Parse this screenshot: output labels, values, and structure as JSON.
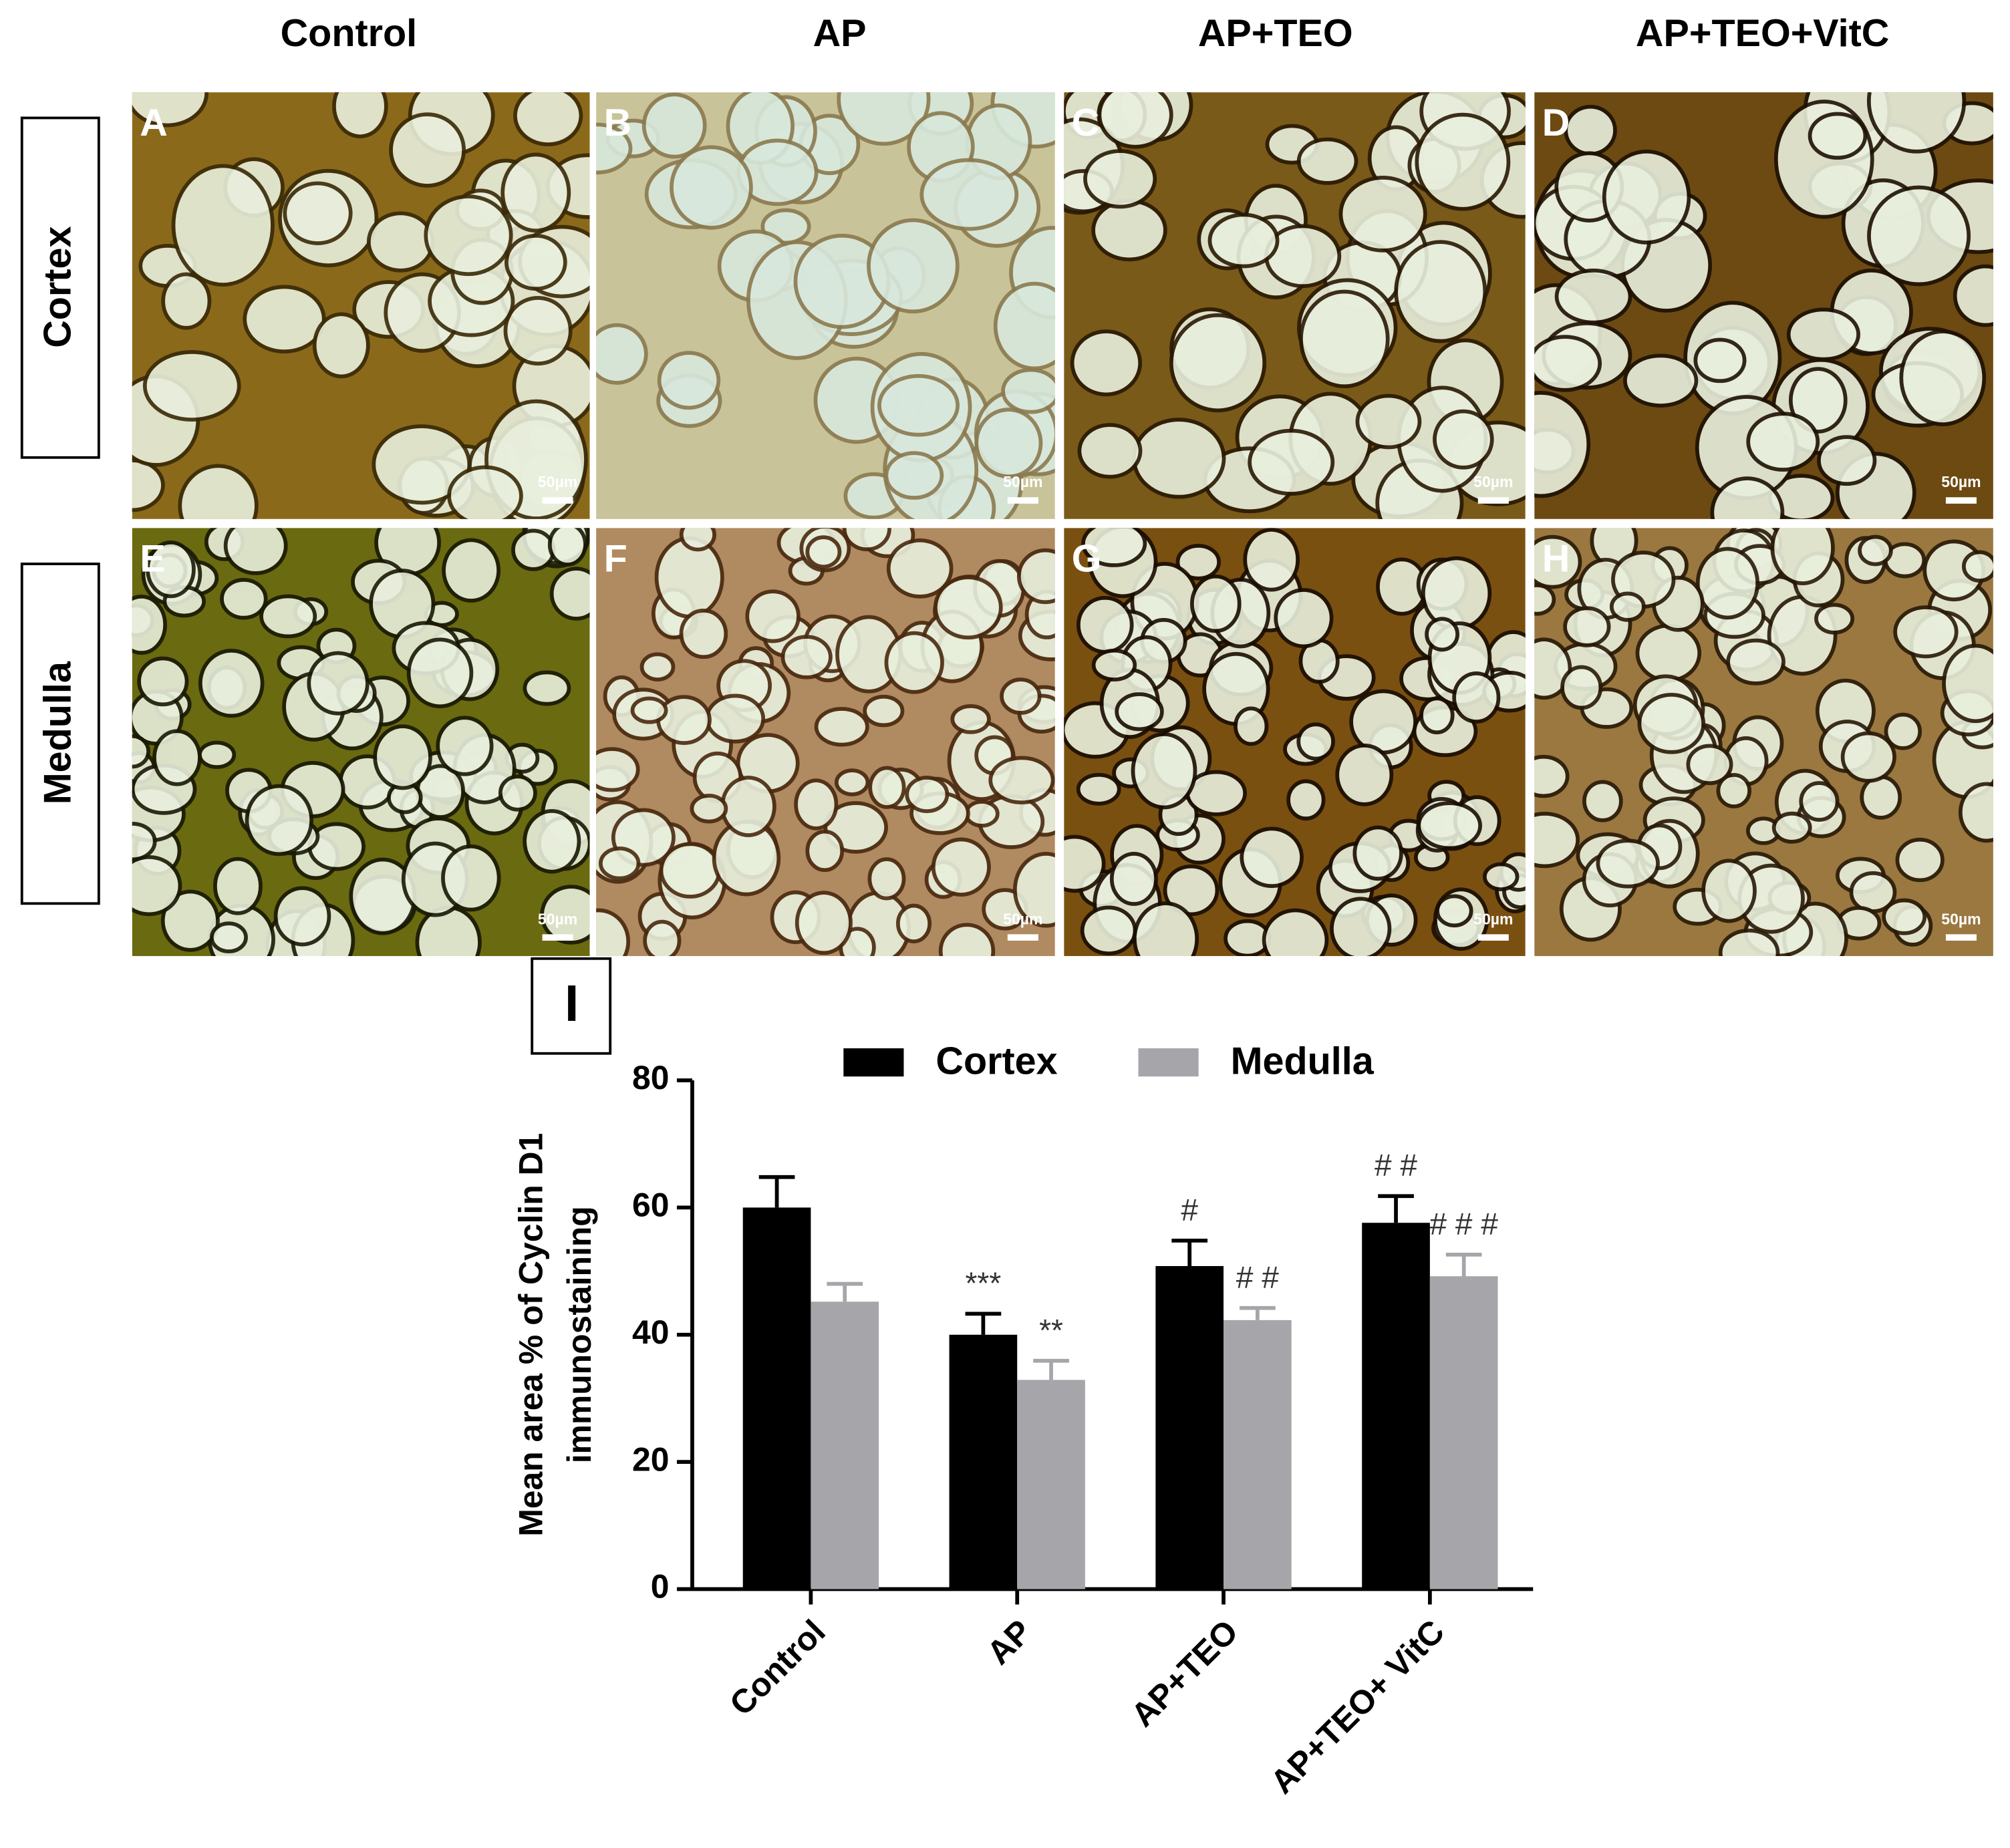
{
  "column_headers": [
    "Control",
    "AP",
    "AP+TEO",
    "AP+TEO+VitC"
  ],
  "row_labels": [
    "Cortex",
    "Medulla"
  ],
  "panels": [
    {
      "letter": "A",
      "scale_bar": "50µm"
    },
    {
      "letter": "B",
      "scale_bar": "50µm"
    },
    {
      "letter": "C",
      "scale_bar": "50µm"
    },
    {
      "letter": "D",
      "scale_bar": "50µm"
    },
    {
      "letter": "E",
      "scale_bar": "50µm"
    },
    {
      "letter": "F",
      "scale_bar": "50µm"
    },
    {
      "letter": "G",
      "scale_bar": "50µm"
    },
    {
      "letter": "H",
      "scale_bar": "50µm"
    }
  ],
  "chart_panel_label": "I",
  "chart_data": {
    "type": "bar",
    "ylabel": [
      "Mean area % of Cyclin D1",
      "immunostaining"
    ],
    "categories": [
      "Control",
      "AP",
      "AP+TEO",
      "AP+TEO+ VitC"
    ],
    "series": [
      {
        "name": "Cortex",
        "color": "#000000",
        "values": [
          60,
          40,
          50.8,
          57.6
        ],
        "errors": [
          4.8,
          3.3,
          4.0,
          4.2
        ],
        "annotations": [
          null,
          "***",
          "#",
          "# #"
        ]
      },
      {
        "name": "Medulla",
        "color": "#a6a6aa",
        "values": [
          45.2,
          32.9,
          42.3,
          49.2
        ],
        "errors": [
          2.8,
          3.0,
          1.9,
          3.4
        ],
        "annotations": [
          null,
          "**",
          "# #",
          "# # #"
        ]
      }
    ],
    "ylim": [
      0,
      80
    ],
    "yticks": [
      0,
      20,
      40,
      60,
      80
    ],
    "legend": "top"
  }
}
